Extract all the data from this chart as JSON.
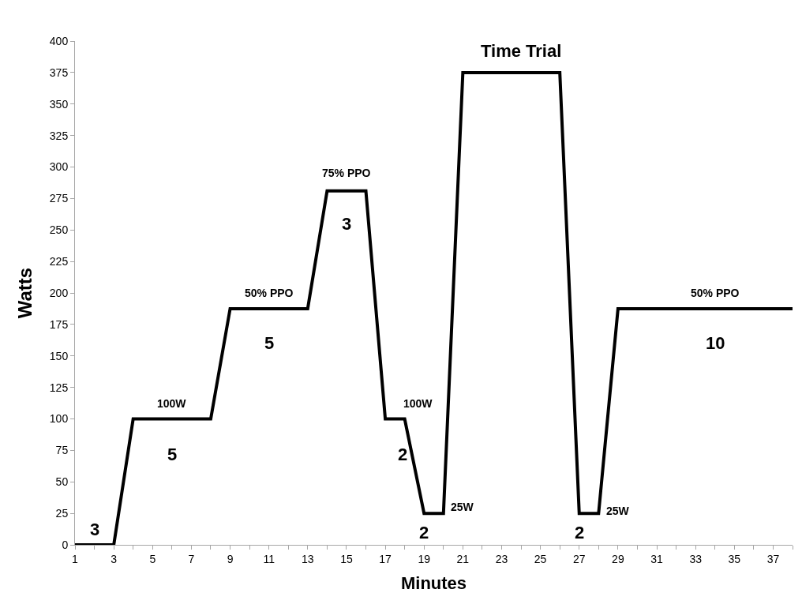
{
  "chart_data": {
    "type": "line",
    "xlabel": "Minutes",
    "ylabel": "Watts",
    "x": [
      1,
      3,
      4,
      8,
      9,
      13,
      14,
      16,
      17,
      18,
      19,
      20,
      21,
      26,
      27,
      28,
      29,
      38
    ],
    "series": [
      {
        "color": "#000000",
        "values": [
          0,
          0,
          100,
          100,
          187.5,
          187.5,
          281,
          281,
          100,
          100,
          25,
          25,
          375,
          375,
          25,
          25,
          187.5,
          187.5
        ]
      }
    ],
    "xlim": [
      1,
      38
    ],
    "xticks": [
      1,
      {
        "value": 2,
        "label": null
      },
      3,
      {
        "value": 4,
        "label": null
      },
      5,
      {
        "value": 6,
        "label": null
      },
      7,
      {
        "value": 8,
        "label": null
      },
      9,
      {
        "value": 10,
        "label": null
      },
      11,
      {
        "value": 12,
        "label": null
      },
      13,
      {
        "value": 14,
        "label": null
      },
      15,
      {
        "value": 16,
        "label": null
      },
      17,
      {
        "value": 18,
        "label": null
      },
      19,
      {
        "value": 20,
        "label": null
      },
      21,
      {
        "value": 22,
        "label": null
      },
      23,
      {
        "value": 24,
        "label": null
      },
      25,
      {
        "value": 26,
        "label": null
      },
      27,
      {
        "value": 28,
        "label": null
      },
      29,
      {
        "value": 30,
        "label": null
      },
      31,
      {
        "value": 32,
        "label": null
      },
      33,
      {
        "value": 34,
        "label": null
      },
      35,
      {
        "value": 36,
        "label": null
      },
      37,
      {
        "value": 38,
        "label": null
      }
    ],
    "ylim": [
      0,
      400
    ],
    "yticks": [
      0,
      25,
      50,
      75,
      100,
      125,
      150,
      175,
      200,
      225,
      250,
      275,
      300,
      325,
      350,
      375,
      400
    ],
    "marker": "none",
    "line_style": "solid",
    "annotations": [
      "3",
      "100W",
      "5",
      "50% PPO",
      "5",
      "75% PPO",
      "3",
      "100W",
      "2",
      "25W",
      "2",
      "Time Trial",
      "2",
      "25W",
      "50% PPO",
      "10"
    ]
  }
}
